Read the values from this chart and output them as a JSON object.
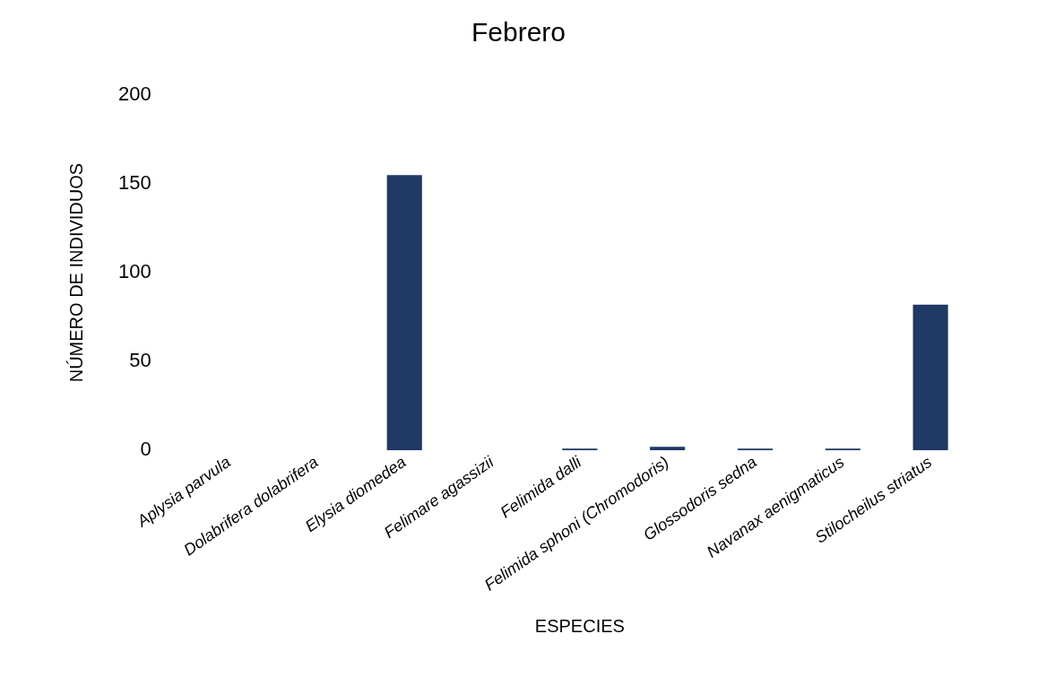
{
  "chart_data": {
    "type": "bar",
    "title": "Febrero",
    "xlabel": "ESPECIES",
    "ylabel": "NÚMERO DE INDIVIDUOS",
    "categories": [
      "Aplysia parvula",
      "Dolabrifera dolabrifera",
      "Elysia diomedea",
      "Felimare agassizii",
      "Felimida dalli",
      "Felimida sphoni (Chromodoris)",
      "Glossodoris sedna",
      "Navanax aenigmaticus",
      "Stilocheilus striatus"
    ],
    "values": [
      0,
      0,
      155,
      0,
      1,
      2,
      1,
      1,
      82
    ],
    "colors": [
      "#4a6b2a",
      "#4a6b2a",
      "#1f3864",
      "#4a6b2a",
      "#1f3864",
      "#1f3864",
      "#1f3864",
      "#1f3864",
      "#1f3864"
    ],
    "ylim": [
      0,
      200
    ],
    "yticks": [
      0,
      50,
      100,
      150,
      200
    ],
    "grid": false,
    "legend": false
  }
}
